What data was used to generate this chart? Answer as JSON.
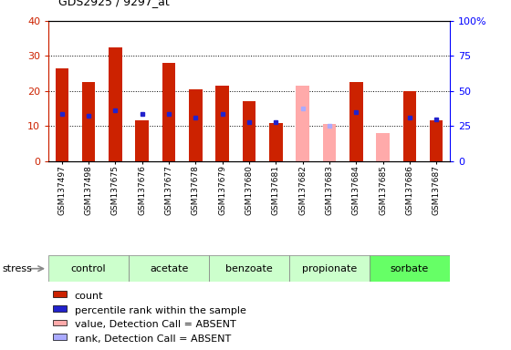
{
  "title": "GDS2925 / 9297_at",
  "samples": [
    "GSM137497",
    "GSM137498",
    "GSM137675",
    "GSM137676",
    "GSM137677",
    "GSM137678",
    "GSM137679",
    "GSM137680",
    "GSM137681",
    "GSM137682",
    "GSM137683",
    "GSM137684",
    "GSM137685",
    "GSM137686",
    "GSM137687"
  ],
  "count_values": [
    26.5,
    22.5,
    32.5,
    11.5,
    28.0,
    20.5,
    21.5,
    17.0,
    10.8,
    null,
    null,
    22.5,
    null,
    20.0,
    11.5
  ],
  "rank_values": [
    13.5,
    13.0,
    14.5,
    13.5,
    13.5,
    12.5,
    13.5,
    11.0,
    11.0,
    null,
    null,
    14.0,
    null,
    12.5,
    12.0
  ],
  "absent_count_values": [
    null,
    null,
    null,
    null,
    null,
    null,
    null,
    null,
    null,
    21.5,
    10.5,
    null,
    8.0,
    null,
    null
  ],
  "absent_rank_values": [
    null,
    null,
    null,
    null,
    null,
    null,
    null,
    null,
    null,
    15.0,
    10.0,
    null,
    null,
    null,
    null
  ],
  "groups": [
    {
      "name": "control",
      "indices": [
        0,
        1,
        2
      ],
      "color": "#ccffcc"
    },
    {
      "name": "acetate",
      "indices": [
        3,
        4,
        5
      ],
      "color": "#ccffcc"
    },
    {
      "name": "benzoate",
      "indices": [
        6,
        7,
        8
      ],
      "color": "#ccffcc"
    },
    {
      "name": "propionate",
      "indices": [
        9,
        10,
        11
      ],
      "color": "#ccffcc"
    },
    {
      "name": "sorbate",
      "indices": [
        12,
        13,
        14
      ],
      "color": "#66ff66"
    }
  ],
  "ylim_left": [
    0,
    40
  ],
  "ylim_right": [
    0,
    100
  ],
  "bar_width": 0.5,
  "count_color": "#cc2200",
  "rank_color": "#2222cc",
  "absent_count_color": "#ffaaaa",
  "absent_rank_color": "#aaaaff",
  "background_color": "#ffffff",
  "plot_bg_color": "#ffffff",
  "sample_bg_color": "#dddddd",
  "stress_label": "stress",
  "group_colors": [
    "#ccffcc",
    "#ccffcc",
    "#ccffcc",
    "#ccffcc",
    "#66ff66"
  ],
  "legend_items": [
    {
      "label": "count",
      "color": "#cc2200"
    },
    {
      "label": "percentile rank within the sample",
      "color": "#2222cc"
    },
    {
      "label": "value, Detection Call = ABSENT",
      "color": "#ffaaaa"
    },
    {
      "label": "rank, Detection Call = ABSENT",
      "color": "#aaaaff"
    }
  ]
}
